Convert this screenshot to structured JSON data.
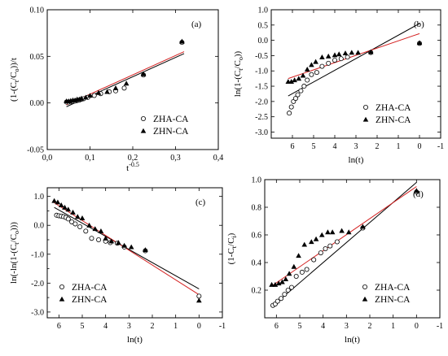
{
  "chart_data": [
    {
      "type": "scatter",
      "panel_label": "(a)",
      "xlabel": "t",
      "xlabel_sup": "-0.5",
      "ylabel": "(1-(C_t/C_o))/t",
      "xlim": [
        0.0,
        0.4
      ],
      "ylim": [
        -0.05,
        0.1
      ],
      "x_axis_reversed": false,
      "xticks": [
        "0,0",
        "0,1",
        "0,2",
        "0,3",
        "0,4"
      ],
      "xtick_values": [
        0.0,
        0.1,
        0.2,
        0.3,
        0.4
      ],
      "yticks": [
        "-0.05",
        "0.00",
        "0.05",
        "0.10"
      ],
      "ytick_values": [
        -0.05,
        0.0,
        0.05,
        0.1
      ],
      "legend": [
        "ZHA-CA",
        "ZHN-CA"
      ],
      "legend_position": "bottom-right",
      "series": [
        {
          "name": "ZHA-CA",
          "marker": "open-circle",
          "points": [
            [
              0.045,
              0.001
            ],
            [
              0.05,
              0.001
            ],
            [
              0.055,
              0.0012
            ],
            [
              0.06,
              0.0015
            ],
            [
              0.065,
              0.002
            ],
            [
              0.07,
              0.0025
            ],
            [
              0.075,
              0.003
            ],
            [
              0.08,
              0.004
            ],
            [
              0.085,
              0.0045
            ],
            [
              0.095,
              0.006
            ],
            [
              0.11,
              0.008
            ],
            [
              0.125,
              0.01
            ],
            [
              0.145,
              0.012
            ],
            [
              0.16,
              0.013
            ],
            [
              0.18,
              0.016
            ],
            [
              0.225,
              0.03
            ],
            [
              0.315,
              0.065
            ]
          ]
        },
        {
          "name": "ZHN-CA",
          "marker": "filled-triangle",
          "points": [
            [
              0.045,
              0.002
            ],
            [
              0.05,
              0.002
            ],
            [
              0.055,
              0.0025
            ],
            [
              0.06,
              0.003
            ],
            [
              0.065,
              0.003
            ],
            [
              0.07,
              0.004
            ],
            [
              0.075,
              0.004
            ],
            [
              0.08,
              0.005
            ],
            [
              0.09,
              0.006
            ],
            [
              0.1,
              0.008
            ],
            [
              0.12,
              0.011
            ],
            [
              0.14,
              0.012
            ],
            [
              0.16,
              0.016
            ],
            [
              0.185,
              0.021
            ],
            [
              0.225,
              0.031
            ],
            [
              0.315,
              0.066
            ]
          ]
        }
      ],
      "fit_lines": [
        {
          "color": "#000000",
          "x": [
            0.045,
            0.32
          ],
          "y": [
            -0.004,
            0.053
          ]
        },
        {
          "color": "#d42020",
          "x": [
            0.045,
            0.32
          ],
          "y": [
            -0.002,
            0.055
          ]
        }
      ]
    },
    {
      "type": "scatter",
      "panel_label": "(b)",
      "xlabel": "ln(t)",
      "ylabel": "ln(1-(C_t/C_o))",
      "xlim": [
        7.0,
        -1.0
      ],
      "ylim": [
        -3.2,
        1.0
      ],
      "x_axis_reversed": true,
      "xticks": [
        "6",
        "5",
        "4",
        "3",
        "2",
        "1",
        "0",
        "-1"
      ],
      "xtick_values": [
        6,
        5,
        4,
        3,
        2,
        1,
        0,
        -1
      ],
      "yticks": [
        "-3.0",
        "-2.5",
        "-2.0",
        "-1.5",
        "-1.0",
        "-0.5",
        "0.0",
        "0.5",
        "1.0"
      ],
      "ytick_values": [
        -3.0,
        -2.5,
        -2.0,
        -1.5,
        -1.0,
        -0.5,
        0.0,
        0.5,
        1.0
      ],
      "legend": [
        "ZHA-CA",
        "ZHN-CA"
      ],
      "legend_position": "bottom-right",
      "series": [
        {
          "name": "ZHA-CA",
          "marker": "open-circle",
          "points": [
            [
              6.15,
              -2.38
            ],
            [
              6.05,
              -2.18
            ],
            [
              5.95,
              -2.0
            ],
            [
              5.85,
              -1.9
            ],
            [
              5.75,
              -1.78
            ],
            [
              5.6,
              -1.65
            ],
            [
              5.45,
              -1.5
            ],
            [
              5.3,
              -1.3
            ],
            [
              5.1,
              -1.12
            ],
            [
              4.85,
              -1.05
            ],
            [
              4.6,
              -0.85
            ],
            [
              4.3,
              -0.75
            ],
            [
              4.0,
              -0.65
            ],
            [
              3.7,
              -0.6
            ],
            [
              3.4,
              -0.55
            ],
            [
              2.3,
              -0.4
            ],
            [
              0.0,
              -0.1
            ]
          ]
        },
        {
          "name": "ZHN-CA",
          "marker": "filled-triangle",
          "points": [
            [
              6.2,
              -1.35
            ],
            [
              6.05,
              -1.35
            ],
            [
              5.9,
              -1.3
            ],
            [
              5.7,
              -1.25
            ],
            [
              5.5,
              -1.15
            ],
            [
              5.3,
              -0.95
            ],
            [
              5.1,
              -0.8
            ],
            [
              4.9,
              -0.7
            ],
            [
              4.6,
              -0.55
            ],
            [
              4.3,
              -0.52
            ],
            [
              4.0,
              -0.48
            ],
            [
              3.8,
              -0.45
            ],
            [
              3.5,
              -0.42
            ],
            [
              3.2,
              -0.4
            ],
            [
              2.9,
              -0.4
            ],
            [
              2.3,
              -0.38
            ],
            [
              0.0,
              -0.08
            ]
          ]
        }
      ],
      "fit_lines": [
        {
          "color": "#000000",
          "x": [
            6.2,
            0.0
          ],
          "y": [
            -1.82,
            0.55
          ]
        },
        {
          "color": "#d42020",
          "x": [
            6.2,
            0.0
          ],
          "y": [
            -1.25,
            0.22
          ]
        }
      ]
    },
    {
      "type": "scatter",
      "panel_label": "(c)",
      "xlabel": "ln(t)",
      "ylabel": "ln(-ln(1-(C_t/C_o)))",
      "xlim": [
        6.5,
        -1.0
      ],
      "ylim": [
        -3.2,
        1.3
      ],
      "x_axis_reversed": true,
      "xticks": [
        "6",
        "5",
        "4",
        "3",
        "2",
        "1",
        "0",
        "-1"
      ],
      "xtick_values": [
        6,
        5,
        4,
        3,
        2,
        1,
        0,
        -1
      ],
      "yticks": [
        "-3.0",
        "-2.0",
        "-1.0",
        "0.0",
        "1.0"
      ],
      "ytick_values": [
        -3.0,
        -2.0,
        -1.0,
        0.0,
        1.0
      ],
      "yticks_minor": [
        -2.5,
        -1.5,
        -0.5,
        0.5
      ],
      "legend": [
        "ZHA-CA",
        "ZHN-CA"
      ],
      "legend_position": "bottom-left",
      "series": [
        {
          "name": "ZHA-CA",
          "marker": "open-circle",
          "points": [
            [
              6.1,
              0.35
            ],
            [
              6.0,
              0.33
            ],
            [
              5.9,
              0.32
            ],
            [
              5.8,
              0.3
            ],
            [
              5.7,
              0.27
            ],
            [
              5.6,
              0.22
            ],
            [
              5.45,
              0.12
            ],
            [
              5.3,
              0.05
            ],
            [
              5.1,
              -0.05
            ],
            [
              4.85,
              -0.2
            ],
            [
              4.6,
              -0.45
            ],
            [
              4.3,
              -0.5
            ],
            [
              4.0,
              -0.55
            ],
            [
              3.8,
              -0.6
            ],
            [
              3.5,
              -0.62
            ],
            [
              3.2,
              -0.75
            ],
            [
              2.3,
              -0.88
            ],
            [
              0.0,
              -2.45
            ]
          ]
        },
        {
          "name": "ZHN-CA",
          "marker": "filled-triangle",
          "points": [
            [
              6.2,
              0.85
            ],
            [
              6.05,
              0.8
            ],
            [
              5.9,
              0.7
            ],
            [
              5.75,
              0.62
            ],
            [
              5.6,
              0.55
            ],
            [
              5.4,
              0.45
            ],
            [
              5.2,
              0.3
            ],
            [
              5.0,
              0.25
            ],
            [
              4.7,
              0.0
            ],
            [
              4.45,
              -0.12
            ],
            [
              4.2,
              -0.2
            ],
            [
              4.0,
              -0.45
            ],
            [
              3.75,
              -0.55
            ],
            [
              3.45,
              -0.6
            ],
            [
              3.2,
              -0.7
            ],
            [
              2.9,
              -0.75
            ],
            [
              2.3,
              -0.85
            ],
            [
              0.0,
              -2.6
            ]
          ]
        }
      ],
      "fit_lines": [
        {
          "color": "#000000",
          "x": [
            6.2,
            0.0
          ],
          "y": [
            0.62,
            -2.2
          ]
        },
        {
          "color": "#d42020",
          "x": [
            6.2,
            0.0
          ],
          "y": [
            0.78,
            -2.4
          ]
        }
      ]
    },
    {
      "type": "scatter",
      "panel_label": "(d)",
      "xlabel": "ln(t)",
      "ylabel": "(1-C_t/C_i)",
      "xlim": [
        6.5,
        -1.0
      ],
      "ylim": [
        0.0,
        1.0
      ],
      "x_axis_reversed": true,
      "xticks": [
        "6",
        "5",
        "4",
        "3",
        "2",
        "1",
        "0",
        "-1"
      ],
      "xtick_values": [
        6,
        5,
        4,
        3,
        2,
        1,
        0,
        -1
      ],
      "yticks": [
        "0.2",
        "0.4",
        "0.6",
        "0.8",
        "1.0"
      ],
      "ytick_values": [
        0.2,
        0.4,
        0.6,
        0.8,
        1.0
      ],
      "legend": [
        "ZHA-CA",
        "ZHN-CA"
      ],
      "legend_position": "bottom-right",
      "series": [
        {
          "name": "ZHA-CA",
          "marker": "open-circle",
          "points": [
            [
              6.15,
              0.09
            ],
            [
              6.05,
              0.1
            ],
            [
              5.95,
              0.12
            ],
            [
              5.8,
              0.14
            ],
            [
              5.65,
              0.17
            ],
            [
              5.5,
              0.2
            ],
            [
              5.35,
              0.22
            ],
            [
              5.15,
              0.3
            ],
            [
              4.9,
              0.33
            ],
            [
              4.7,
              0.35
            ],
            [
              4.4,
              0.42
            ],
            [
              4.1,
              0.47
            ],
            [
              3.9,
              0.5
            ],
            [
              3.7,
              0.52
            ],
            [
              3.4,
              0.55
            ],
            [
              2.3,
              0.65
            ],
            [
              0.0,
              0.91
            ]
          ]
        },
        {
          "name": "ZHN-CA",
          "marker": "filled-triangle",
          "points": [
            [
              6.2,
              0.24
            ],
            [
              6.05,
              0.24
            ],
            [
              5.9,
              0.25
            ],
            [
              5.75,
              0.26
            ],
            [
              5.6,
              0.28
            ],
            [
              5.45,
              0.32
            ],
            [
              5.25,
              0.37
            ],
            [
              5.05,
              0.45
            ],
            [
              4.8,
              0.53
            ],
            [
              4.5,
              0.55
            ],
            [
              4.3,
              0.57
            ],
            [
              4.05,
              0.6
            ],
            [
              3.8,
              0.62
            ],
            [
              3.6,
              0.62
            ],
            [
              3.2,
              0.63
            ],
            [
              2.9,
              0.62
            ],
            [
              2.3,
              0.66
            ],
            [
              0.0,
              0.92
            ]
          ]
        }
      ],
      "fit_lines": [
        {
          "color": "#000000",
          "x": [
            6.2,
            0.0
          ],
          "y": [
            0.08,
            0.98
          ]
        },
        {
          "color": "#d42020",
          "x": [
            6.2,
            0.0
          ],
          "y": [
            0.23,
            0.95
          ]
        }
      ]
    }
  ]
}
